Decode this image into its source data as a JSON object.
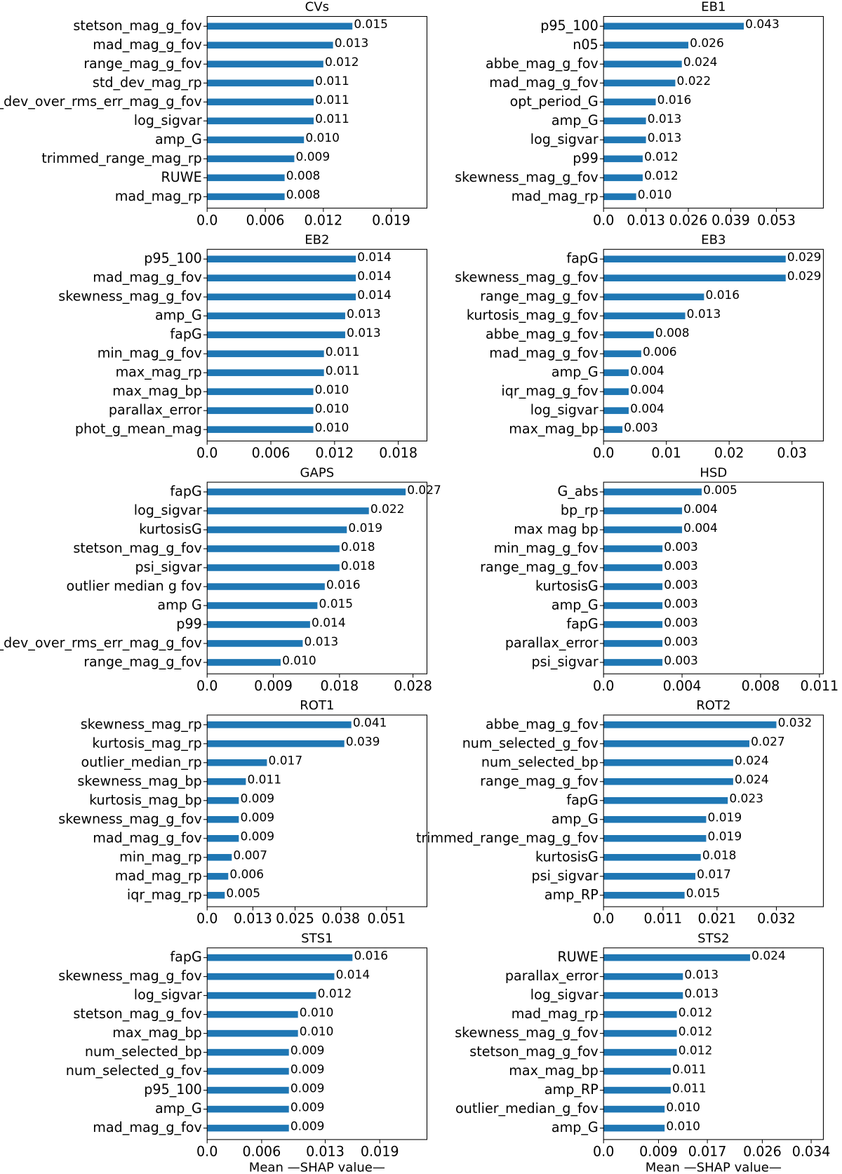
{
  "chart_data": [
    {
      "type": "barh",
      "title": "CVs",
      "color": "#1f77b4",
      "categories": [
        "stetson_mag_g_fov",
        "mad_mag_g_fov",
        "range_mag_g_fov",
        "std_dev_mag_rp",
        "std_dev_over_rms_err_mag_g_fov",
        "log_sigvar",
        "amp_G",
        "trimmed_range_mag_rp",
        "RUWE",
        "mad_mag_rp"
      ],
      "values": [
        0.015,
        0.013,
        0.012,
        0.011,
        0.011,
        0.011,
        0.01,
        0.009,
        0.008,
        0.008
      ],
      "value_labels": [
        "0.015",
        "0.013",
        "0.012",
        "0.011",
        "0.011",
        "0.011",
        "0.010",
        "0.009",
        "0.008",
        "0.008"
      ],
      "xlim": [
        0,
        0.0227
      ],
      "xticks": [
        {
          "value": 0,
          "label": "0.0"
        },
        0.006,
        0.012,
        0.019
      ]
    },
    {
      "type": "barh",
      "title": "EB1",
      "color": "#1f77b4",
      "categories": [
        "p95_100",
        "n05",
        "abbe_mag_g_fov",
        "mad_mag_g_fov",
        "opt_period_G",
        "amp_G",
        "log_sigvar",
        "p99",
        "skewness_mag_g_fov",
        "mad_mag_rp"
      ],
      "values": [
        0.043,
        0.026,
        0.024,
        0.022,
        0.016,
        0.013,
        0.013,
        0.012,
        0.012,
        0.01
      ],
      "value_labels": [
        "0.043",
        "0.026",
        "0.024",
        "0.022",
        "0.016",
        "0.013",
        "0.013",
        "0.012",
        "0.012",
        "0.010"
      ],
      "xlim": [
        0,
        0.0674
      ],
      "xticks": [
        {
          "value": 0,
          "label": "0.0"
        },
        0.013,
        0.026,
        0.039,
        0.053
      ]
    },
    {
      "type": "barh",
      "title": "EB2",
      "color": "#1f77b4",
      "categories": [
        "p95_100",
        "mad_mag_g_fov",
        "skewness_mag_g_fov",
        "amp_G",
        "fapG",
        "min_mag_g_fov",
        "max_mag_rp",
        "max_mag_bp",
        "parallax_error",
        "phot_g_mean_mag"
      ],
      "values": [
        0.014,
        0.014,
        0.014,
        0.013,
        0.013,
        0.011,
        0.011,
        0.01,
        0.01,
        0.01
      ],
      "value_labels": [
        "0.014",
        "0.014",
        "0.014",
        "0.013",
        "0.013",
        "0.011",
        "0.011",
        "0.010",
        "0.010",
        "0.010"
      ],
      "xlim": [
        0,
        0.0207
      ],
      "xticks": [
        {
          "value": 0,
          "label": "0.0"
        },
        0.006,
        0.012,
        0.018
      ]
    },
    {
      "type": "barh",
      "title": "EB3",
      "color": "#1f77b4",
      "categories": [
        "fapG",
        "skewness_mag_g_fov",
        "range_mag_g_fov",
        "kurtosis_mag_g_fov",
        "abbe_mag_g_fov",
        "mad_mag_g_fov",
        "amp_G",
        "iqr_mag_g_fov",
        "log_sigvar",
        "max_mag_bp"
      ],
      "values": [
        0.029,
        0.029,
        0.016,
        0.013,
        0.008,
        0.006,
        0.004,
        0.004,
        0.004,
        0.003
      ],
      "value_labels": [
        "0.029",
        "0.029",
        "0.016",
        "0.013",
        "0.008",
        "0.006",
        "0.004",
        "0.004",
        "0.004",
        "0.003"
      ],
      "xlim": [
        0,
        0.035
      ],
      "xticks": [
        {
          "value": 0,
          "label": "0.0"
        },
        0.01,
        0.02,
        0.03
      ]
    },
    {
      "type": "barh",
      "title": "GAPS",
      "color": "#1f77b4",
      "categories": [
        "fapG",
        "log_sigvar",
        "kurtosisG",
        "stetson_mag_g_fov",
        "psi_sigvar",
        "outlier median g fov",
        "amp G",
        "p99",
        "std_dev_over_rms_err_mag_g_fov",
        "range_mag_g_fov"
      ],
      "values": [
        0.027,
        0.022,
        0.019,
        0.018,
        0.018,
        0.016,
        0.015,
        0.014,
        0.013,
        0.01
      ],
      "value_labels": [
        "0.027",
        "0.022",
        "0.019",
        "0.018",
        "0.018",
        "0.016",
        "0.015",
        "0.014",
        "0.013",
        "0.010"
      ],
      "xlim": [
        0,
        0.0299
      ],
      "xticks": [
        {
          "value": 0,
          "label": "0.0"
        },
        0.009,
        0.018,
        0.028
      ]
    },
    {
      "type": "barh",
      "title": "HSD",
      "color": "#1f77b4",
      "categories": [
        "G_abs",
        "bp_rp",
        "max mag bp",
        "min_mag_g_fov",
        "range_mag_g_fov",
        "kurtosisG",
        "amp_G",
        "fapG",
        "parallax_error",
        "psi_sigvar"
      ],
      "values": [
        0.005,
        0.004,
        0.004,
        0.003,
        0.003,
        0.003,
        0.003,
        0.003,
        0.003,
        0.003
      ],
      "xlim": [
        0,
        0.0112
      ],
      "xticks": [
        {
          "value": 0,
          "label": "0.0"
        },
        0.004,
        0.008,
        0.011
      ]
    },
    {
      "type": "barh",
      "title": "ROT1",
      "color": "#1f77b4",
      "categories": [
        "skewness_mag_rp",
        "kurtosis_mag_rp",
        "outlier_median_rp",
        "skewness_mag_bp",
        "kurtosis_mag_bp",
        "skewness_mag_g_fov",
        "mad_mag_g_fov",
        "min_mag_rp",
        "mad_mag_rp",
        "iqr_mag_rp"
      ],
      "values": [
        0.041,
        0.039,
        0.017,
        0.011,
        0.009,
        0.009,
        0.009,
        0.007,
        0.006,
        0.005
      ],
      "xlim": [
        0,
        0.0625
      ],
      "xticks": [
        {
          "value": 0,
          "label": "0.0"
        },
        0.013,
        0.025,
        0.038,
        0.051
      ]
    },
    {
      "type": "barh",
      "title": "ROT2",
      "color": "#1f77b4",
      "categories": [
        "abbe_mag_g_fov",
        "num_selected_g_fov",
        "num_selected_bp",
        "range_mag_g_fov",
        "fapG",
        "amp_G",
        "trimmed_range_mag_g_fov",
        "kurtosisG",
        "psi_sigvar",
        "amp_RP"
      ],
      "values": [
        0.032,
        0.027,
        0.024,
        0.024,
        0.023,
        0.019,
        0.019,
        0.018,
        0.017,
        0.015
      ],
      "xlim": [
        0,
        0.0407
      ],
      "xticks": [
        {
          "value": 0,
          "label": "0.0"
        },
        0.011,
        0.021,
        0.032
      ]
    },
    {
      "type": "barh",
      "title": "STS1",
      "color": "#1f77b4",
      "xlabel": "Mean —SHAP value—",
      "categories": [
        "fapG",
        "skewness_mag_g_fov",
        "log_sigvar",
        "stetson_mag_g_fov",
        "max_mag_bp",
        "num_selected_bp",
        "num_selected_g_fov",
        "p95_100",
        "amp_G",
        "mad_mag_g_fov"
      ],
      "values": [
        0.016,
        0.014,
        0.012,
        0.01,
        0.01,
        0.009,
        0.009,
        0.009,
        0.009,
        0.009
      ],
      "value_labels": [
        "0.016",
        "0.014",
        "0.012",
        "0.010",
        "0.010",
        "0.009",
        "0.009",
        "0.009",
        "0.009",
        "0.009"
      ],
      "xlim": [
        0,
        0.0242
      ],
      "xticks": [
        {
          "value": 0,
          "label": "0.0"
        },
        0.006,
        0.013,
        0.019
      ]
    },
    {
      "type": "barh",
      "title": "STS2",
      "color": "#1f77b4",
      "xlabel": "Mean —SHAP value—",
      "categories": [
        "RUWE",
        "parallax_error",
        "log_sigvar",
        "mad_mag_rp",
        "skewness_mag_g_fov",
        "stetson_mag_g_fov",
        "max_mag_bp",
        "amp_RP",
        "outlier_median_g_fov",
        "amp_G"
      ],
      "values": [
        0.024,
        0.013,
        0.013,
        0.012,
        0.012,
        0.012,
        0.011,
        0.011,
        0.01,
        0.01
      ],
      "value_labels": [
        "0.024",
        "0.013",
        "0.013",
        "0.012",
        "0.012",
        "0.012",
        "0.011",
        "0.011",
        "0.010",
        "0.010"
      ],
      "xlim": [
        0,
        0.036
      ],
      "xticks": [
        {
          "value": 0,
          "label": "0.0"
        },
        0.009,
        0.017,
        0.026,
        0.034
      ]
    }
  ]
}
